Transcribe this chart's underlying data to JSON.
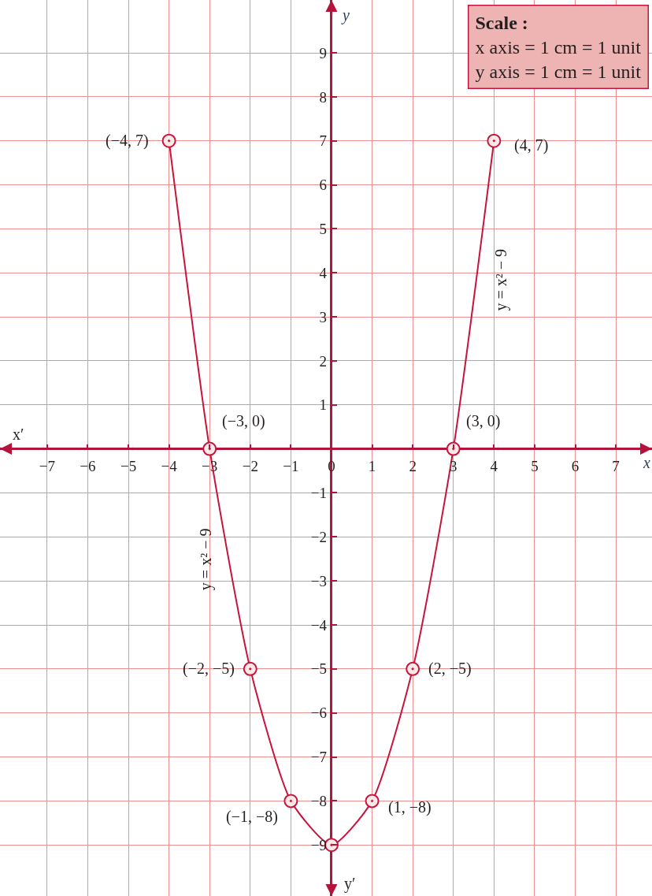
{
  "chart_data": {
    "type": "line",
    "xlabel": "x",
    "ylabel": "y",
    "series": [
      {
        "color": "#c8143c",
        "x": [
          -4,
          -3,
          -2,
          -1,
          0,
          1,
          2,
          3,
          4
        ],
        "values": [
          7,
          0,
          -5,
          -8,
          -9,
          -8,
          -5,
          0,
          7
        ]
      }
    ],
    "marker": "circle",
    "line_style": "solid",
    "xlim": [
      -8.16,
      7.89
    ],
    "ylim": [
      -10.16,
      10.2
    ],
    "xticks": [
      -7,
      -6,
      -5,
      -4,
      -3,
      -2,
      -1,
      0,
      1,
      2,
      3,
      4,
      5,
      6,
      7
    ],
    "yticks": [
      -9,
      -8,
      -7,
      -6,
      -5,
      -4,
      -3,
      -2,
      -1,
      1,
      2,
      3,
      4,
      5,
      6,
      7,
      8,
      9
    ],
    "grid": true,
    "annotations": [
      "Scale :\nx axis = 1 cm = 1 unit\ny axis = 1 cm = 1 unit",
      "x′",
      "y′",
      {
        "text": "(−4, 7)",
        "x": -4,
        "y": 7
      },
      {
        "text": "(4, 7)",
        "x": 4,
        "y": 7
      },
      {
        "text": "(−3, 0)",
        "x": -3,
        "y": 0
      },
      {
        "text": "(3, 0)",
        "x": 3,
        "y": 0
      },
      {
        "text": "(−2, −5)",
        "x": -2,
        "y": -5
      },
      {
        "text": "(2, −5)",
        "x": 2,
        "y": -5
      },
      {
        "text": "(−1, −8)",
        "x": -1,
        "y": -8
      },
      {
        "text": "(1, −8)",
        "x": 1,
        "y": -8
      },
      "y = x² − 9",
      "y = x² − 9"
    ]
  }
}
